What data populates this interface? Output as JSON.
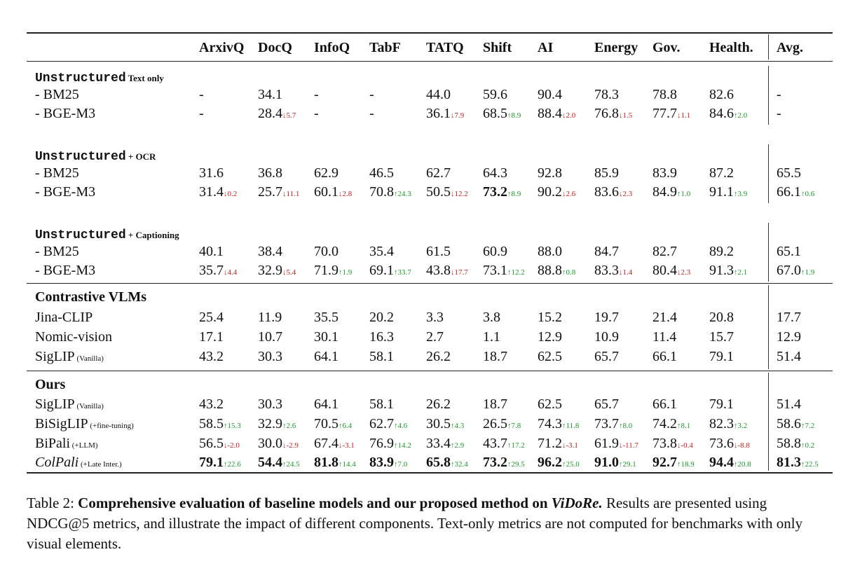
{
  "columns": [
    "ArxivQ",
    "DocQ",
    "InfoQ",
    "TabF",
    "TATQ",
    "Shift",
    "AI",
    "Energy",
    "Gov.",
    "Health.",
    "Avg."
  ],
  "rows": [
    {
      "type": "section",
      "mono": "Unstructured",
      "sub": "Text only"
    },
    {
      "type": "data",
      "label": "- BM25",
      "cells": [
        {
          "v": "-"
        },
        {
          "v": "34.1"
        },
        {
          "v": "-"
        },
        {
          "v": "-"
        },
        {
          "v": "44.0"
        },
        {
          "v": "59.6"
        },
        {
          "v": "90.4"
        },
        {
          "v": "78.3"
        },
        {
          "v": "78.8"
        },
        {
          "v": "82.6"
        },
        {
          "v": "-"
        }
      ]
    },
    {
      "type": "data",
      "label": "- BGE-M3",
      "cells": [
        {
          "v": "-"
        },
        {
          "v": "28.4",
          "d": "↓5.7",
          "dir": "down"
        },
        {
          "v": "-"
        },
        {
          "v": "-"
        },
        {
          "v": "36.1",
          "d": "↓7.9",
          "dir": "down"
        },
        {
          "v": "68.5",
          "d": "↑8.9",
          "dir": "up"
        },
        {
          "v": "88.4",
          "d": "↓2.0",
          "dir": "down"
        },
        {
          "v": "76.8",
          "d": "↓1.5",
          "dir": "down"
        },
        {
          "v": "77.7",
          "d": "↓1.1",
          "dir": "down"
        },
        {
          "v": "84.6",
          "d": "↑2.0",
          "dir": "up"
        },
        {
          "v": "-"
        }
      ]
    },
    {
      "type": "section",
      "mono": "Unstructured",
      "sub": "+ OCR"
    },
    {
      "type": "data",
      "label": "- BM25",
      "cells": [
        {
          "v": "31.6"
        },
        {
          "v": "36.8"
        },
        {
          "v": "62.9"
        },
        {
          "v": "46.5"
        },
        {
          "v": "62.7"
        },
        {
          "v": "64.3"
        },
        {
          "v": "92.8"
        },
        {
          "v": "85.9"
        },
        {
          "v": "83.9"
        },
        {
          "v": "87.2"
        },
        {
          "v": "65.5"
        }
      ]
    },
    {
      "type": "data",
      "label": "- BGE-M3",
      "cells": [
        {
          "v": "31.4",
          "d": "↓0.2",
          "dir": "down"
        },
        {
          "v": "25.7",
          "d": "↓11.1",
          "dir": "down"
        },
        {
          "v": "60.1",
          "d": "↓2.8",
          "dir": "down"
        },
        {
          "v": "70.8",
          "d": "↑24.3",
          "dir": "up"
        },
        {
          "v": "50.5",
          "d": "↓12.2",
          "dir": "down"
        },
        {
          "v": "73.2",
          "d": "↑8.9",
          "dir": "up",
          "b": true
        },
        {
          "v": "90.2",
          "d": "↓2.6",
          "dir": "down"
        },
        {
          "v": "83.6",
          "d": "↓2.3",
          "dir": "down"
        },
        {
          "v": "84.9",
          "d": "↑1.0",
          "dir": "up"
        },
        {
          "v": "91.1",
          "d": "↑3.9",
          "dir": "up"
        },
        {
          "v": "66.1",
          "d": "↑0.6",
          "dir": "up"
        }
      ]
    },
    {
      "type": "section",
      "mono": "Unstructured",
      "sub": "+ Captioning"
    },
    {
      "type": "data",
      "label": "- BM25",
      "cells": [
        {
          "v": "40.1"
        },
        {
          "v": "38.4"
        },
        {
          "v": "70.0"
        },
        {
          "v": "35.4"
        },
        {
          "v": "61.5"
        },
        {
          "v": "60.9"
        },
        {
          "v": "88.0"
        },
        {
          "v": "84.7"
        },
        {
          "v": "82.7"
        },
        {
          "v": "89.2"
        },
        {
          "v": "65.1"
        }
      ]
    },
    {
      "type": "data",
      "label": "- BGE-M3",
      "cells": [
        {
          "v": "35.7",
          "d": "↓4.4",
          "dir": "down"
        },
        {
          "v": "32.9",
          "d": "↓5.4",
          "dir": "down"
        },
        {
          "v": "71.9",
          "d": "↑1.9",
          "dir": "up"
        },
        {
          "v": "69.1",
          "d": "↑33.7",
          "dir": "up"
        },
        {
          "v": "43.8",
          "d": "↓17.7",
          "dir": "down"
        },
        {
          "v": "73.1",
          "d": "↑12.2",
          "dir": "up"
        },
        {
          "v": "88.8",
          "d": "↑0.8",
          "dir": "up"
        },
        {
          "v": "83.3",
          "d": "↓1.4",
          "dir": "down"
        },
        {
          "v": "80.4",
          "d": "↓2.3",
          "dir": "down"
        },
        {
          "v": "91.3",
          "d": "↑2.1",
          "dir": "up"
        },
        {
          "v": "67.0",
          "d": "↑1.9",
          "dir": "up"
        }
      ]
    },
    {
      "type": "section",
      "title": "Contrastive VLMs"
    },
    {
      "type": "data",
      "label": "Jina-CLIP",
      "cells": [
        {
          "v": "25.4"
        },
        {
          "v": "11.9"
        },
        {
          "v": "35.5"
        },
        {
          "v": "20.2"
        },
        {
          "v": "3.3"
        },
        {
          "v": "3.8"
        },
        {
          "v": "15.2"
        },
        {
          "v": "19.7"
        },
        {
          "v": "21.4"
        },
        {
          "v": "20.8"
        },
        {
          "v": "17.7"
        }
      ]
    },
    {
      "type": "data",
      "label": "Nomic-vision",
      "cells": [
        {
          "v": "17.1"
        },
        {
          "v": "10.7"
        },
        {
          "v": "30.1"
        },
        {
          "v": "16.3"
        },
        {
          "v": "2.7"
        },
        {
          "v": "1.1"
        },
        {
          "v": "12.9"
        },
        {
          "v": "10.9"
        },
        {
          "v": "11.4"
        },
        {
          "v": "15.7"
        },
        {
          "v": "12.9"
        }
      ]
    },
    {
      "type": "data",
      "label": "SigLIP",
      "note": "(Vanilla)",
      "cells": [
        {
          "v": "43.2"
        },
        {
          "v": "30.3"
        },
        {
          "v": "64.1"
        },
        {
          "v": "58.1"
        },
        {
          "v": "26.2"
        },
        {
          "v": "18.7"
        },
        {
          "v": "62.5"
        },
        {
          "v": "65.7"
        },
        {
          "v": "66.1"
        },
        {
          "v": "79.1"
        },
        {
          "v": "51.4"
        }
      ]
    },
    {
      "type": "section",
      "title": "Ours"
    },
    {
      "type": "data",
      "label": "SigLIP",
      "note": "(Vanilla)",
      "cells": [
        {
          "v": "43.2"
        },
        {
          "v": "30.3"
        },
        {
          "v": "64.1"
        },
        {
          "v": "58.1"
        },
        {
          "v": "26.2"
        },
        {
          "v": "18.7"
        },
        {
          "v": "62.5"
        },
        {
          "v": "65.7"
        },
        {
          "v": "66.1"
        },
        {
          "v": "79.1"
        },
        {
          "v": "51.4"
        }
      ]
    },
    {
      "type": "data",
      "label": "BiSigLIP",
      "note": "(+fine-tuning)",
      "cells": [
        {
          "v": "58.5",
          "d": "↑15.3",
          "dir": "up"
        },
        {
          "v": "32.9",
          "d": "↑2.6",
          "dir": "up"
        },
        {
          "v": "70.5",
          "d": "↑6.4",
          "dir": "up"
        },
        {
          "v": "62.7",
          "d": "↑4.6",
          "dir": "up"
        },
        {
          "v": "30.5",
          "d": "↑4.3",
          "dir": "up"
        },
        {
          "v": "26.5",
          "d": "↑7.8",
          "dir": "up"
        },
        {
          "v": "74.3",
          "d": "↑11.8",
          "dir": "up"
        },
        {
          "v": "73.7",
          "d": "↑8.0",
          "dir": "up"
        },
        {
          "v": "74.2",
          "d": "↑8.1",
          "dir": "up"
        },
        {
          "v": "82.3",
          "d": "↑3.2",
          "dir": "up"
        },
        {
          "v": "58.6",
          "d": "↑7.2",
          "dir": "up"
        }
      ]
    },
    {
      "type": "data",
      "label": "BiPali",
      "note": "(+LLM)",
      "cells": [
        {
          "v": "56.5",
          "d": "↓-2.0",
          "dir": "down"
        },
        {
          "v": "30.0",
          "d": "↓-2.9",
          "dir": "down"
        },
        {
          "v": "67.4",
          "d": "↓-3.1",
          "dir": "down"
        },
        {
          "v": "76.9",
          "d": "↑14.2",
          "dir": "up"
        },
        {
          "v": "33.4",
          "d": "↑2.9",
          "dir": "up"
        },
        {
          "v": "43.7",
          "d": "↑17.2",
          "dir": "up"
        },
        {
          "v": "71.2",
          "d": "↓-3.1",
          "dir": "down"
        },
        {
          "v": "61.9",
          "d": "↓-11.7",
          "dir": "down"
        },
        {
          "v": "73.8",
          "d": "↓-0.4",
          "dir": "down"
        },
        {
          "v": "73.6",
          "d": "↓-8.8",
          "dir": "down"
        },
        {
          "v": "58.8",
          "d": "↑0.2",
          "dir": "up"
        }
      ]
    },
    {
      "type": "data",
      "label": "ColPali",
      "note": "(+Late Inter.)",
      "italic": true,
      "cells": [
        {
          "v": "79.1",
          "d": "↑22.6",
          "dir": "up",
          "b": true
        },
        {
          "v": "54.4",
          "d": "↑24.5",
          "dir": "up",
          "b": true
        },
        {
          "v": "81.8",
          "d": "↑14.4",
          "dir": "up",
          "b": true
        },
        {
          "v": "83.9",
          "d": "↑7.0",
          "dir": "up",
          "b": true
        },
        {
          "v": "65.8",
          "d": "↑32.4",
          "dir": "up",
          "b": true
        },
        {
          "v": "73.2",
          "d": "↑29.5",
          "dir": "up",
          "b": true
        },
        {
          "v": "96.2",
          "d": "↑25.0",
          "dir": "up",
          "b": true
        },
        {
          "v": "91.0",
          "d": "↑29.1",
          "dir": "up",
          "b": true
        },
        {
          "v": "92.7",
          "d": "↑18.9",
          "dir": "up",
          "b": true
        },
        {
          "v": "94.4",
          "d": "↑20.8",
          "dir": "up",
          "b": true
        },
        {
          "v": "81.3",
          "d": "↑22.5",
          "dir": "up",
          "b": true
        }
      ]
    }
  ],
  "caption": {
    "label": "Table 2:",
    "title": "Comprehensive evaluation of baseline models and our proposed method on",
    "title_italic": "ViDoRe.",
    "body": "Results are presented using NDCG@5 metrics, and illustrate the impact of different components. Text-only metrics are not computed for benchmarks with only visual elements."
  }
}
